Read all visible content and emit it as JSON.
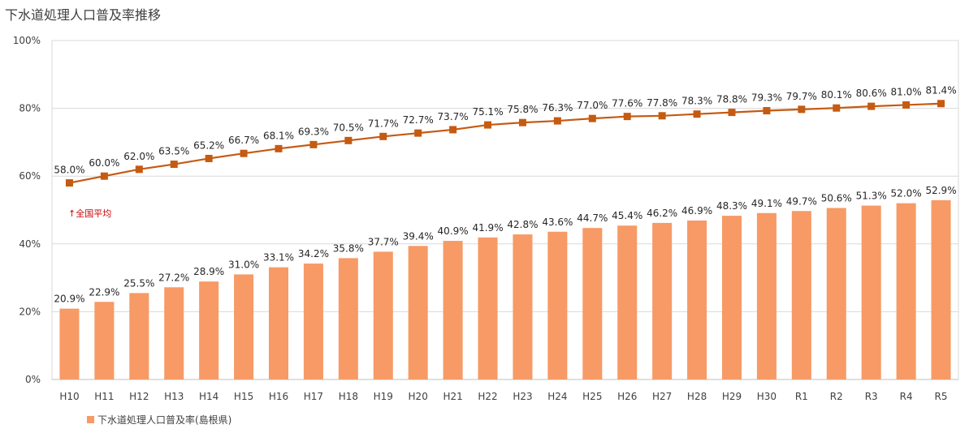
{
  "title": "下水道処理人口普及率推移",
  "chart_data": {
    "type": "bar",
    "title": "下水道処理人口普及率推移",
    "categories": [
      "H10",
      "H11",
      "H12",
      "H13",
      "H14",
      "H15",
      "H16",
      "H17",
      "H18",
      "H19",
      "H20",
      "H21",
      "H22",
      "H23",
      "H24",
      "H25",
      "H26",
      "H27",
      "H28",
      "H29",
      "H30",
      "R1",
      "R2",
      "R3",
      "R4",
      "R5"
    ],
    "ylim": [
      0,
      100
    ],
    "yticks": [
      "0%",
      "20%",
      "40%",
      "60%",
      "80%",
      "100%"
    ],
    "grid": true,
    "legend_position": "bottom-left",
    "series": [
      {
        "name": "下水道処理人口普及率(島根県)",
        "type": "bar",
        "color": "#f79a66",
        "values": [
          20.9,
          22.9,
          25.5,
          27.2,
          28.9,
          31.0,
          33.1,
          34.2,
          35.8,
          37.7,
          39.4,
          40.9,
          41.9,
          42.8,
          43.6,
          44.7,
          45.4,
          46.2,
          46.9,
          48.3,
          49.1,
          49.7,
          50.6,
          51.3,
          52.0,
          52.9
        ],
        "labels": [
          "20.9%",
          "22.9%",
          "25.5%",
          "27.2%",
          "28.9%",
          "31.0%",
          "33.1%",
          "34.2%",
          "35.8%",
          "37.7%",
          "39.4%",
          "40.9%",
          "41.9%",
          "42.8%",
          "43.6%",
          "44.7%",
          "45.4%",
          "46.2%",
          "46.9%",
          "48.3%",
          "49.1%",
          "49.7%",
          "50.6%",
          "51.3%",
          "52.0%",
          "52.9%"
        ]
      },
      {
        "type": "line",
        "color": "#c55a11",
        "values": [
          58.0,
          60.0,
          62.0,
          63.5,
          65.2,
          66.7,
          68.1,
          69.3,
          70.5,
          71.7,
          72.7,
          73.7,
          75.1,
          75.8,
          76.3,
          77.0,
          77.6,
          77.8,
          78.3,
          78.8,
          79.3,
          79.7,
          80.1,
          80.6,
          81.0,
          81.4
        ],
        "labels": [
          "58.0%",
          "60.0%",
          "62.0%",
          "63.5%",
          "65.2%",
          "66.7%",
          "68.1%",
          "69.3%",
          "70.5%",
          "71.7%",
          "72.7%",
          "73.7%",
          "75.1%",
          "75.8%",
          "76.3%",
          "77.0%",
          "77.6%",
          "77.8%",
          "78.3%",
          "78.8%",
          "79.3%",
          "79.7%",
          "80.1%",
          "80.6%",
          "81.0%",
          "81.4%"
        ]
      }
    ],
    "annotation": {
      "text": "↑全国平均",
      "color": "#cc0000"
    }
  }
}
